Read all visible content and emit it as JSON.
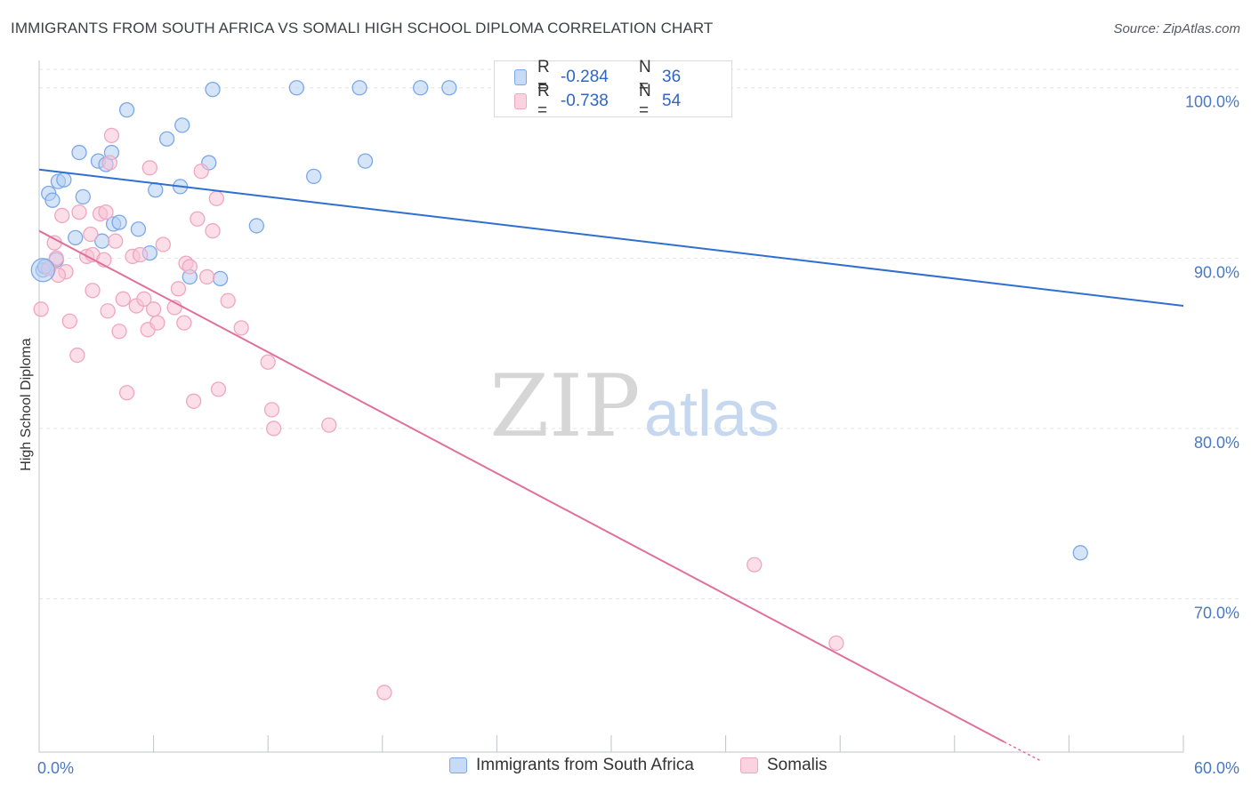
{
  "header": {
    "title": "IMMIGRANTS FROM SOUTH AFRICA VS SOMALI HIGH SCHOOL DIPLOMA CORRELATION CHART",
    "source": "Source: ZipAtlas.com"
  },
  "watermark": {
    "zip": "ZIP",
    "atlas": "atlas"
  },
  "legend": {
    "rows": [
      {
        "r_label": "R =",
        "r_value": "-0.284",
        "n_label": "N =",
        "n_value": "36",
        "color": "#7aa8e8"
      },
      {
        "r_label": "R =",
        "r_value": "-0.738",
        "n_label": "N =",
        "n_value": "54",
        "color": "#f0a6c0"
      }
    ]
  },
  "bottom_legend": {
    "items": [
      {
        "label": "Immigrants from South Africa",
        "color": "#7aa8e8"
      },
      {
        "label": "Somalis",
        "color": "#f0a6c0"
      }
    ]
  },
  "chart_data": {
    "type": "scatter",
    "title": "IMMIGRANTS FROM SOUTH AFRICA VS SOMALI HIGH SCHOOL DIPLOMA CORRELATION CHART",
    "xlabel": "",
    "ylabel": "High School Diploma",
    "xlim": [
      0,
      60
    ],
    "ylim": [
      61,
      101.5
    ],
    "x_tick_labels": [
      "0.0%",
      "60.0%"
    ],
    "y_ticks": [
      70,
      80,
      90,
      100
    ],
    "y_tick_labels": [
      "70.0%",
      "80.0%",
      "90.0%",
      "100.0%"
    ],
    "grid": true,
    "legend_position": "top-center",
    "series": [
      {
        "name": "Immigrants from South Africa",
        "color": "#7aa8e8",
        "line_color": "#2f6fce",
        "trend": {
          "x": [
            0,
            60
          ],
          "y": [
            95.2,
            87.2
          ]
        },
        "points": [
          [
            0.2,
            89.3
          ],
          [
            0.5,
            93.8
          ],
          [
            0.7,
            93.4
          ],
          [
            1.0,
            94.5
          ],
          [
            1.3,
            94.6
          ],
          [
            2.1,
            96.2
          ],
          [
            2.3,
            93.6
          ],
          [
            1.9,
            91.2
          ],
          [
            3.1,
            95.7
          ],
          [
            3.5,
            95.5
          ],
          [
            3.8,
            96.2
          ],
          [
            3.3,
            91.0
          ],
          [
            3.9,
            92.0
          ],
          [
            4.2,
            92.1
          ],
          [
            4.6,
            98.7
          ],
          [
            5.2,
            91.7
          ],
          [
            5.8,
            90.3
          ],
          [
            6.1,
            94.0
          ],
          [
            6.7,
            97.0
          ],
          [
            7.4,
            94.2
          ],
          [
            7.5,
            97.8
          ],
          [
            7.9,
            88.9
          ],
          [
            8.9,
            95.6
          ],
          [
            9.1,
            99.9
          ],
          [
            9.5,
            88.8
          ],
          [
            11.4,
            91.9
          ],
          [
            13.5,
            100.0
          ],
          [
            14.4,
            94.8
          ],
          [
            16.8,
            100.0
          ],
          [
            17.1,
            95.7
          ],
          [
            20.0,
            100.0
          ],
          [
            21.5,
            100.0
          ],
          [
            33.3,
            100.0
          ],
          [
            54.6,
            72.7
          ],
          [
            0.3,
            89.5
          ],
          [
            0.9,
            89.9
          ]
        ]
      },
      {
        "name": "Somalis",
        "color": "#f0a6c0",
        "line_color": "#e0709a",
        "trend": {
          "x": [
            0,
            50.6
          ],
          "y": [
            91.6,
            61.6
          ]
        },
        "trend_dashed": {
          "x": [
            50.6,
            52.5
          ],
          "y": [
            61.6,
            60.5
          ]
        },
        "points": [
          [
            0.1,
            87.0
          ],
          [
            0.5,
            89.4
          ],
          [
            0.8,
            90.9
          ],
          [
            0.9,
            90.0
          ],
          [
            1.2,
            92.5
          ],
          [
            1.4,
            89.2
          ],
          [
            1.6,
            86.3
          ],
          [
            2.0,
            84.3
          ],
          [
            2.1,
            92.7
          ],
          [
            2.5,
            90.1
          ],
          [
            2.7,
            91.4
          ],
          [
            2.8,
            90.2
          ],
          [
            2.8,
            88.1
          ],
          [
            3.2,
            92.6
          ],
          [
            3.4,
            89.9
          ],
          [
            3.5,
            92.7
          ],
          [
            3.6,
            86.9
          ],
          [
            3.7,
            95.6
          ],
          [
            3.8,
            97.2
          ],
          [
            4.0,
            91.0
          ],
          [
            4.2,
            85.7
          ],
          [
            4.4,
            87.6
          ],
          [
            4.6,
            82.1
          ],
          [
            4.9,
            90.1
          ],
          [
            5.1,
            87.2
          ],
          [
            5.3,
            90.2
          ],
          [
            5.5,
            87.6
          ],
          [
            5.7,
            85.8
          ],
          [
            5.8,
            95.3
          ],
          [
            6.0,
            87.0
          ],
          [
            6.2,
            86.2
          ],
          [
            6.5,
            90.8
          ],
          [
            7.1,
            87.1
          ],
          [
            7.3,
            88.2
          ],
          [
            7.6,
            86.2
          ],
          [
            7.7,
            89.7
          ],
          [
            7.9,
            89.5
          ],
          [
            8.1,
            81.6
          ],
          [
            8.3,
            92.3
          ],
          [
            8.5,
            95.1
          ],
          [
            8.8,
            88.9
          ],
          [
            9.1,
            91.6
          ],
          [
            9.3,
            93.5
          ],
          [
            9.4,
            82.3
          ],
          [
            9.9,
            87.5
          ],
          [
            10.6,
            85.9
          ],
          [
            12.0,
            83.9
          ],
          [
            12.2,
            81.1
          ],
          [
            12.3,
            80.0
          ],
          [
            15.2,
            80.2
          ],
          [
            18.1,
            64.5
          ],
          [
            37.5,
            72.0
          ],
          [
            41.8,
            67.4
          ],
          [
            1.0,
            89.0
          ]
        ]
      }
    ]
  }
}
